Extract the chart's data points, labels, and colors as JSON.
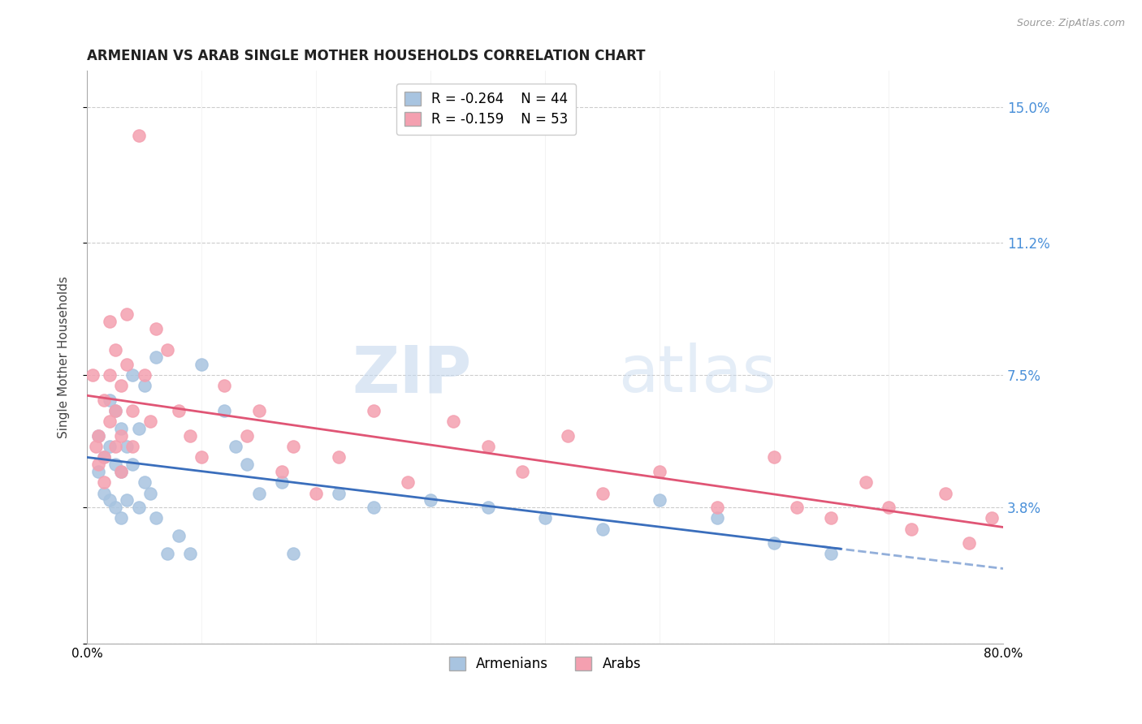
{
  "title": "ARMENIAN VS ARAB SINGLE MOTHER HOUSEHOLDS CORRELATION CHART",
  "source": "Source: ZipAtlas.com",
  "ylabel": "Single Mother Households",
  "xlim": [
    0.0,
    0.8
  ],
  "ylim": [
    0.0,
    0.16
  ],
  "yticks": [
    0.0,
    0.038,
    0.075,
    0.112,
    0.15
  ],
  "ytick_labels": [
    "",
    "3.8%",
    "7.5%",
    "11.2%",
    "15.0%"
  ],
  "legend_armenian_R": "-0.264",
  "legend_armenian_N": "44",
  "legend_arab_R": "-0.159",
  "legend_arab_N": "53",
  "armenian_color": "#a8c4e0",
  "arab_color": "#f4a0b0",
  "armenian_line_color": "#3a6ebc",
  "arab_line_color": "#e05575",
  "watermark_zip": "ZIP",
  "watermark_atlas": "atlas",
  "armenian_x": [
    0.01,
    0.01,
    0.015,
    0.015,
    0.02,
    0.02,
    0.02,
    0.025,
    0.025,
    0.025,
    0.03,
    0.03,
    0.03,
    0.035,
    0.035,
    0.04,
    0.04,
    0.045,
    0.045,
    0.05,
    0.05,
    0.055,
    0.06,
    0.06,
    0.07,
    0.08,
    0.09,
    0.1,
    0.12,
    0.13,
    0.14,
    0.15,
    0.17,
    0.18,
    0.22,
    0.25,
    0.3,
    0.35,
    0.4,
    0.45,
    0.5,
    0.55,
    0.6,
    0.65
  ],
  "armenian_y": [
    0.058,
    0.048,
    0.052,
    0.042,
    0.068,
    0.055,
    0.04,
    0.065,
    0.05,
    0.038,
    0.06,
    0.048,
    0.035,
    0.055,
    0.04,
    0.075,
    0.05,
    0.06,
    0.038,
    0.072,
    0.045,
    0.042,
    0.08,
    0.035,
    0.025,
    0.03,
    0.025,
    0.078,
    0.065,
    0.055,
    0.05,
    0.042,
    0.045,
    0.025,
    0.042,
    0.038,
    0.04,
    0.038,
    0.035,
    0.032,
    0.04,
    0.035,
    0.028,
    0.025
  ],
  "arab_x": [
    0.005,
    0.008,
    0.01,
    0.01,
    0.015,
    0.015,
    0.015,
    0.02,
    0.02,
    0.02,
    0.025,
    0.025,
    0.025,
    0.03,
    0.03,
    0.03,
    0.035,
    0.035,
    0.04,
    0.04,
    0.045,
    0.05,
    0.055,
    0.06,
    0.07,
    0.08,
    0.09,
    0.1,
    0.12,
    0.14,
    0.15,
    0.17,
    0.18,
    0.2,
    0.22,
    0.25,
    0.28,
    0.32,
    0.35,
    0.38,
    0.42,
    0.45,
    0.5,
    0.55,
    0.6,
    0.62,
    0.65,
    0.68,
    0.7,
    0.72,
    0.75,
    0.77,
    0.79
  ],
  "arab_y": [
    0.075,
    0.055,
    0.05,
    0.058,
    0.068,
    0.052,
    0.045,
    0.09,
    0.075,
    0.062,
    0.082,
    0.065,
    0.055,
    0.072,
    0.058,
    0.048,
    0.092,
    0.078,
    0.065,
    0.055,
    0.142,
    0.075,
    0.062,
    0.088,
    0.082,
    0.065,
    0.058,
    0.052,
    0.072,
    0.058,
    0.065,
    0.048,
    0.055,
    0.042,
    0.052,
    0.065,
    0.045,
    0.062,
    0.055,
    0.048,
    0.058,
    0.042,
    0.048,
    0.038,
    0.052,
    0.038,
    0.035,
    0.045,
    0.038,
    0.032,
    0.042,
    0.028,
    0.035
  ]
}
